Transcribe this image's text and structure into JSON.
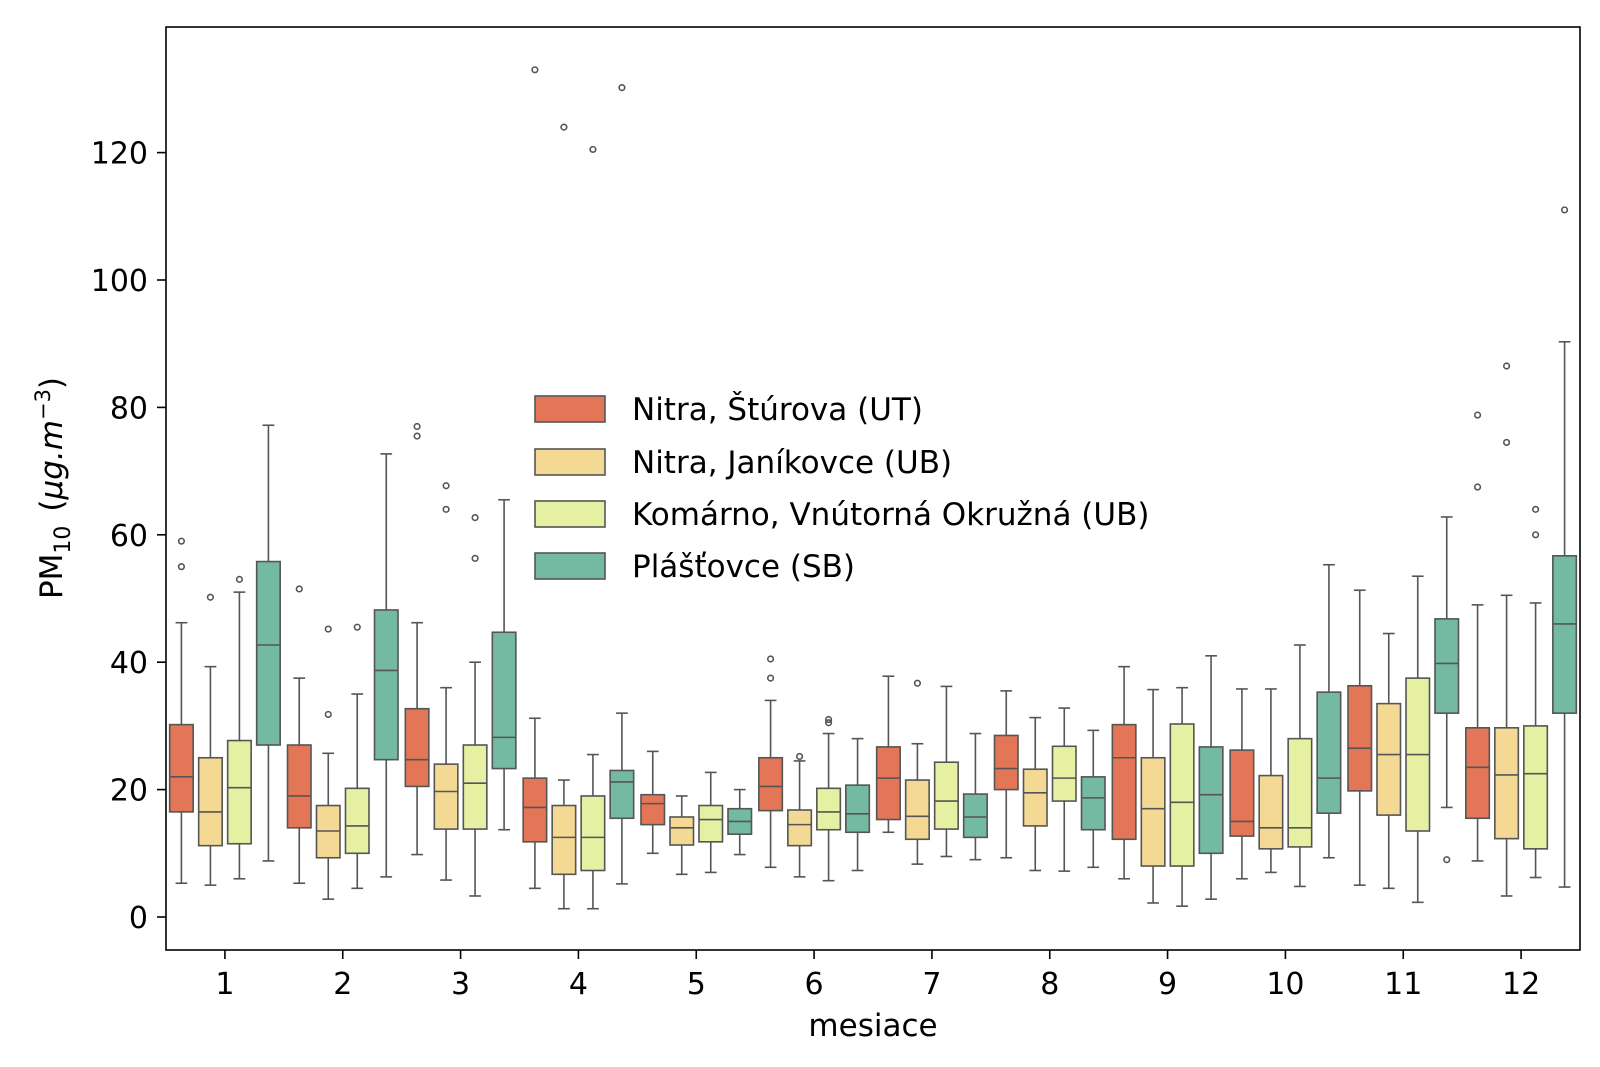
{
  "chart_data": {
    "type": "boxplot",
    "xlabel": "mesiace",
    "ylabel": {
      "main": "PM",
      "sub": "10",
      "unit_open": "(",
      "unit_mu": "μg.m",
      "unit_sup": "−3",
      "unit_close": ")"
    },
    "categories": [
      "1",
      "2",
      "3",
      "4",
      "5",
      "6",
      "7",
      "8",
      "9",
      "10",
      "11",
      "12"
    ],
    "ylim": [
      -5,
      140
    ],
    "yticks": [
      0,
      20,
      40,
      60,
      80,
      100,
      120
    ],
    "legend_position": "center-left",
    "series": [
      {
        "name": "Nitra, Štúrova (UT)",
        "color": "#e27657",
        "boxes": [
          {
            "wlo": 5.3,
            "q1": 16.5,
            "med": 22.0,
            "q3": 30.2,
            "whi": 46.2,
            "fliers": [
              55.0,
              59.0
            ]
          },
          {
            "wlo": 5.3,
            "q1": 14.0,
            "med": 19.0,
            "q3": 27.0,
            "whi": 37.5,
            "fliers": [
              51.5
            ]
          },
          {
            "wlo": 9.8,
            "q1": 20.5,
            "med": 24.7,
            "q3": 32.7,
            "whi": 46.2,
            "fliers": [
              75.5,
              77.0
            ]
          },
          {
            "wlo": 4.5,
            "q1": 11.8,
            "med": 17.2,
            "q3": 21.8,
            "whi": 31.2,
            "fliers": [
              133.0
            ]
          },
          {
            "wlo": 10.0,
            "q1": 14.5,
            "med": 17.8,
            "q3": 19.2,
            "whi": 26.0,
            "fliers": []
          },
          {
            "wlo": 7.8,
            "q1": 16.7,
            "med": 20.5,
            "q3": 25.0,
            "whi": 34.0,
            "fliers": [
              37.5,
              40.5
            ]
          },
          {
            "wlo": 13.3,
            "q1": 15.3,
            "med": 21.8,
            "q3": 26.7,
            "whi": 37.8,
            "fliers": []
          },
          {
            "wlo": 9.3,
            "q1": 20.0,
            "med": 23.3,
            "q3": 28.5,
            "whi": 35.5,
            "fliers": []
          },
          {
            "wlo": 6.0,
            "q1": 12.2,
            "med": 25.0,
            "q3": 30.2,
            "whi": 39.3,
            "fliers": []
          },
          {
            "wlo": 6.0,
            "q1": 12.7,
            "med": 15.0,
            "q3": 26.2,
            "whi": 35.8,
            "fliers": []
          },
          {
            "wlo": 5.0,
            "q1": 19.8,
            "med": 26.5,
            "q3": 36.3,
            "whi": 51.3,
            "fliers": []
          },
          {
            "wlo": 8.8,
            "q1": 15.5,
            "med": 23.5,
            "q3": 29.7,
            "whi": 49.0,
            "fliers": [
              67.5,
              78.8
            ]
          }
        ]
      },
      {
        "name": "Nitra, Janíkovce (UB)",
        "color": "#f4d994",
        "boxes": [
          {
            "wlo": 5.0,
            "q1": 11.2,
            "med": 16.5,
            "q3": 25.0,
            "whi": 39.3,
            "fliers": [
              50.2
            ]
          },
          {
            "wlo": 2.8,
            "q1": 9.3,
            "med": 13.5,
            "q3": 17.5,
            "whi": 25.7,
            "fliers": [
              31.8,
              45.2
            ]
          },
          {
            "wlo": 5.8,
            "q1": 13.8,
            "med": 19.7,
            "q3": 24.0,
            "whi": 36.0,
            "fliers": [
              64.0,
              67.7
            ]
          },
          {
            "wlo": 1.3,
            "q1": 6.7,
            "med": 12.5,
            "q3": 17.5,
            "whi": 21.5,
            "fliers": [
              124.0
            ]
          },
          {
            "wlo": 6.7,
            "q1": 11.3,
            "med": 14.0,
            "q3": 15.7,
            "whi": 19.0,
            "fliers": []
          },
          {
            "wlo": 6.3,
            "q1": 11.2,
            "med": 14.5,
            "q3": 16.8,
            "whi": 24.5,
            "fliers": [
              25.2
            ]
          },
          {
            "wlo": 8.3,
            "q1": 12.2,
            "med": 15.8,
            "q3": 21.5,
            "whi": 27.2,
            "fliers": [
              36.7
            ]
          },
          {
            "wlo": 7.3,
            "q1": 14.3,
            "med": 19.5,
            "q3": 23.2,
            "whi": 31.3,
            "fliers": []
          },
          {
            "wlo": 2.2,
            "q1": 8.0,
            "med": 17.0,
            "q3": 25.0,
            "whi": 35.7,
            "fliers": []
          },
          {
            "wlo": 7.0,
            "q1": 10.7,
            "med": 14.0,
            "q3": 22.2,
            "whi": 35.8,
            "fliers": []
          },
          {
            "wlo": 4.5,
            "q1": 16.0,
            "med": 25.5,
            "q3": 33.5,
            "whi": 44.5,
            "fliers": []
          },
          {
            "wlo": 3.3,
            "q1": 12.3,
            "med": 22.3,
            "q3": 29.7,
            "whi": 50.5,
            "fliers": [
              74.5,
              86.5
            ]
          }
        ]
      },
      {
        "name": "Komárno, Vnútorná Okružná (UB)",
        "color": "#e5f0a3",
        "boxes": [
          {
            "wlo": 6.0,
            "q1": 11.5,
            "med": 20.3,
            "q3": 27.7,
            "whi": 51.0,
            "fliers": [
              53.0
            ]
          },
          {
            "wlo": 4.5,
            "q1": 10.0,
            "med": 14.3,
            "q3": 20.2,
            "whi": 35.0,
            "fliers": [
              45.5
            ]
          },
          {
            "wlo": 3.3,
            "q1": 13.8,
            "med": 21.0,
            "q3": 27.0,
            "whi": 40.0,
            "fliers": [
              56.3,
              62.7
            ]
          },
          {
            "wlo": 1.3,
            "q1": 7.3,
            "med": 12.5,
            "q3": 19.0,
            "whi": 25.5,
            "fliers": [
              120.5
            ]
          },
          {
            "wlo": 7.0,
            "q1": 11.8,
            "med": 15.3,
            "q3": 17.5,
            "whi": 22.7,
            "fliers": []
          },
          {
            "wlo": 5.7,
            "q1": 13.7,
            "med": 16.5,
            "q3": 20.2,
            "whi": 28.8,
            "fliers": [
              30.5,
              31.0
            ]
          },
          {
            "wlo": 9.5,
            "q1": 13.8,
            "med": 18.2,
            "q3": 24.3,
            "whi": 36.2,
            "fliers": []
          },
          {
            "wlo": 7.2,
            "q1": 18.2,
            "med": 21.8,
            "q3": 26.8,
            "whi": 32.8,
            "fliers": []
          },
          {
            "wlo": 1.7,
            "q1": 8.0,
            "med": 18.0,
            "q3": 30.3,
            "whi": 36.0,
            "fliers": []
          },
          {
            "wlo": 4.8,
            "q1": 11.0,
            "med": 14.0,
            "q3": 28.0,
            "whi": 42.7,
            "fliers": []
          },
          {
            "wlo": 2.3,
            "q1": 13.5,
            "med": 25.5,
            "q3": 37.5,
            "whi": 53.5,
            "fliers": []
          },
          {
            "wlo": 6.2,
            "q1": 10.7,
            "med": 22.5,
            "q3": 30.0,
            "whi": 49.3,
            "fliers": [
              60.0,
              64.0
            ]
          }
        ]
      },
      {
        "name": "Plášťovce (SB)",
        "color": "#74b9a1",
        "boxes": [
          {
            "wlo": 8.8,
            "q1": 27.0,
            "med": 42.7,
            "q3": 55.8,
            "whi": 77.2,
            "fliers": []
          },
          {
            "wlo": 6.3,
            "q1": 24.7,
            "med": 38.7,
            "q3": 48.2,
            "whi": 72.7,
            "fliers": []
          },
          {
            "wlo": 13.7,
            "q1": 23.3,
            "med": 28.2,
            "q3": 44.7,
            "whi": 65.5,
            "fliers": []
          },
          {
            "wlo": 5.2,
            "q1": 15.5,
            "med": 21.2,
            "q3": 23.0,
            "whi": 32.0,
            "fliers": [
              130.2
            ]
          },
          {
            "wlo": 9.8,
            "q1": 13.0,
            "med": 15.0,
            "q3": 17.0,
            "whi": 20.0,
            "fliers": []
          },
          {
            "wlo": 7.3,
            "q1": 13.3,
            "med": 16.2,
            "q3": 20.7,
            "whi": 28.0,
            "fliers": []
          },
          {
            "wlo": 9.0,
            "q1": 12.5,
            "med": 15.7,
            "q3": 19.3,
            "whi": 28.8,
            "fliers": []
          },
          {
            "wlo": 7.8,
            "q1": 13.7,
            "med": 18.7,
            "q3": 22.0,
            "whi": 29.3,
            "fliers": []
          },
          {
            "wlo": 2.8,
            "q1": 10.0,
            "med": 19.2,
            "q3": 26.7,
            "whi": 41.0,
            "fliers": []
          },
          {
            "wlo": 9.3,
            "q1": 16.3,
            "med": 21.8,
            "q3": 35.3,
            "whi": 55.3,
            "fliers": []
          },
          {
            "wlo": 17.2,
            "q1": 32.0,
            "med": 39.8,
            "q3": 46.8,
            "whi": 62.8,
            "fliers": [
              9.0
            ]
          },
          {
            "wlo": 4.7,
            "q1": 32.0,
            "med": 46.0,
            "q3": 56.7,
            "whi": 90.3,
            "fliers": [
              111.0
            ]
          }
        ]
      }
    ]
  }
}
